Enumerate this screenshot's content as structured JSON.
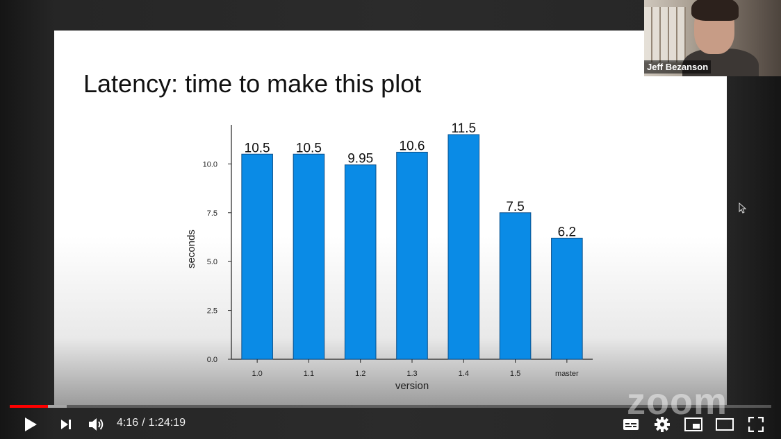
{
  "slide": {
    "title": "Latency: time to make this plot"
  },
  "chart_data": {
    "type": "bar",
    "categories": [
      "1.0",
      "1.1",
      "1.2",
      "1.3",
      "1.4",
      "1.5",
      "master"
    ],
    "values": [
      10.5,
      10.5,
      9.95,
      10.6,
      11.5,
      7.5,
      6.2
    ],
    "value_labels": [
      "10.5",
      "10.5",
      "9.95",
      "10.6",
      "11.5",
      "7.5",
      "6.2"
    ],
    "title": "",
    "xlabel": "version",
    "ylabel": "seconds",
    "ylim": [
      0,
      12
    ],
    "yticks": [
      0.0,
      2.5,
      5.0,
      7.5,
      10.0
    ],
    "ytick_labels": [
      "0.0",
      "2.5",
      "5.0",
      "7.5",
      "10.0"
    ],
    "bar_color": "#0a8be6",
    "grid": false,
    "legend": "none"
  },
  "webcam": {
    "name": "Jeff Bezanson"
  },
  "watermark": {
    "text": "zoom"
  },
  "player": {
    "current_time": "4:16",
    "separator": "/",
    "duration": "1:24:19",
    "progress": 0.0506,
    "buffered": 0.075,
    "accent": "#ff0000",
    "icons": {
      "play": "play-icon",
      "next": "next-icon",
      "volume": "volume-icon",
      "subtitles": "subtitles-icon",
      "settings": "gear-icon",
      "miniplayer": "miniplayer-icon",
      "theater": "theater-mode-icon",
      "fullscreen": "fullscreen-icon"
    }
  }
}
